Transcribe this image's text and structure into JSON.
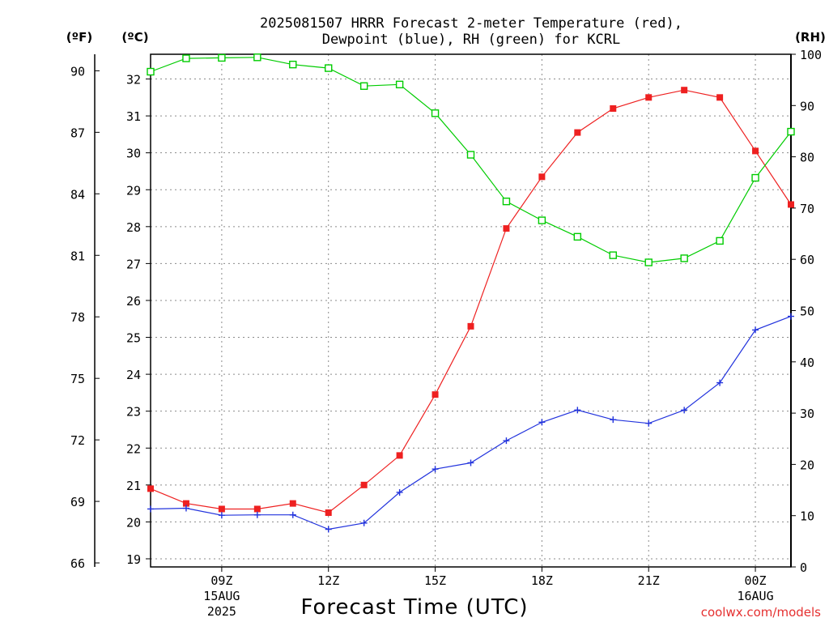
{
  "chart_data": {
    "type": "line",
    "title": [
      "2025081507 HRRR Forecast 2-meter Temperature (red),",
      "Dewpoint (blue), RH (green) for KCRL"
    ],
    "xlabel": "Forecast Time (UTC)",
    "credit": "coolwx.com/models",
    "y_left_outer_label": "(ºF)",
    "y_left_inner_label": "(ºC)",
    "y_right_label": "(RH)",
    "x": [
      "07Z",
      "08Z",
      "09Z",
      "10Z",
      "11Z",
      "12Z",
      "13Z",
      "14Z",
      "15Z",
      "16Z",
      "17Z",
      "18Z",
      "19Z",
      "20Z",
      "21Z",
      "22Z",
      "23Z",
      "00Z",
      "01Z"
    ],
    "x_ticks": [
      {
        "label": "09Z",
        "date": "15AUG",
        "year": "2025"
      },
      {
        "label": "12Z"
      },
      {
        "label": "15Z"
      },
      {
        "label": "18Z"
      },
      {
        "label": "21Z"
      },
      {
        "label": "00Z",
        "date": "16AUG"
      }
    ],
    "celsius_ticks": [
      "19",
      "20",
      "21",
      "22",
      "23",
      "24",
      "25",
      "26",
      "27",
      "28",
      "29",
      "30",
      "31",
      "32"
    ],
    "fahrenheit_ticks": [
      "66",
      "69",
      "72",
      "75",
      "78",
      "81",
      "84",
      "87",
      "90"
    ],
    "rh_ticks": [
      "0",
      "10",
      "20",
      "30",
      "40",
      "50",
      "60",
      "70",
      "80",
      "90",
      "100"
    ],
    "ylim_celsius": [
      18.78,
      32.67
    ],
    "ylim_rh": [
      0,
      100
    ],
    "grid": true,
    "colors": {
      "temperature": "#ee2020",
      "dewpoint": "#2233dd",
      "rh": "#00cc00"
    },
    "series": [
      {
        "name": "Temperature",
        "axis": "celsius",
        "marker": "filled-square",
        "values": [
          20.9,
          20.5,
          20.35,
          20.35,
          20.5,
          20.25,
          21.0,
          21.8,
          23.45,
          25.3,
          27.95,
          29.35,
          30.55,
          31.2,
          31.5,
          31.7,
          31.5,
          30.05,
          28.6
        ]
      },
      {
        "name": "Dewpoint",
        "axis": "celsius",
        "marker": "plus",
        "values": [
          20.35,
          20.37,
          20.18,
          20.19,
          20.19,
          19.8,
          19.97,
          20.8,
          21.43,
          21.6,
          22.2,
          22.7,
          23.03,
          22.77,
          22.67,
          23.03,
          23.77,
          25.2,
          25.57
        ]
      },
      {
        "name": "RH",
        "axis": "rh",
        "marker": "open-square",
        "values": [
          96.6,
          99.2,
          99.3,
          99.4,
          98.0,
          97.3,
          93.8,
          94.1,
          88.5,
          80.4,
          71.3,
          67.6,
          64.4,
          60.8,
          59.4,
          60.2,
          63.6,
          75.9,
          84.9
        ]
      }
    ]
  }
}
